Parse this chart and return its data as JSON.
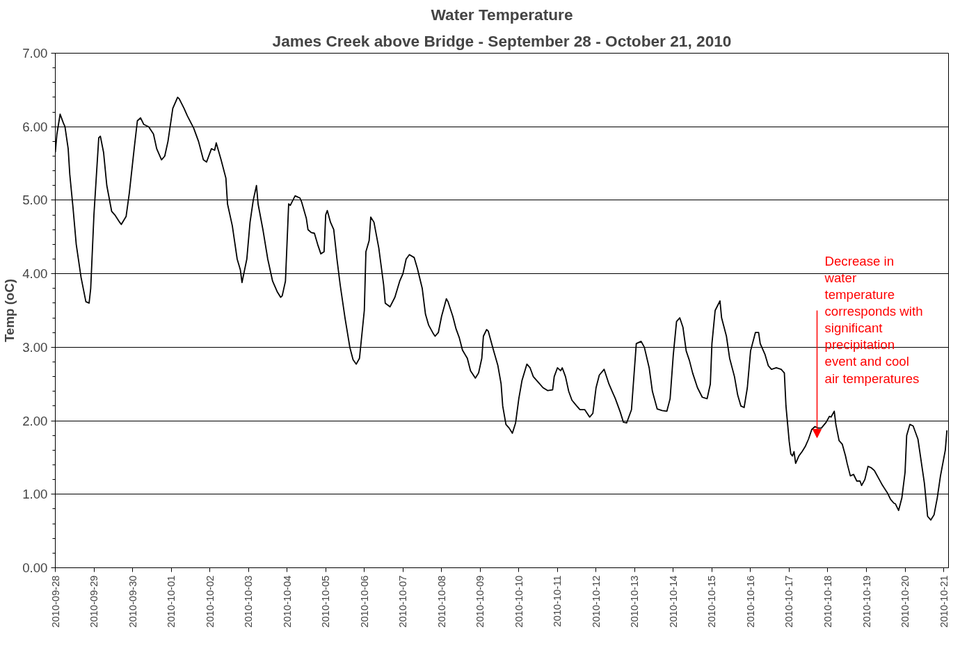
{
  "chart_data": {
    "type": "line",
    "title": "Water Temperature",
    "subtitle": "James Creek above Bridge - September 28 - October 21, 2010",
    "ylabel": "Temp (oC)",
    "x": [
      "2010-09-28T00:00",
      "2010-09-28T01:00",
      "2010-09-28T03:00",
      "2010-09-28T05:00",
      "2010-09-28T06:00",
      "2010-09-28T08:00",
      "2010-09-28T09:00",
      "2010-09-28T11:00",
      "2010-09-28T13:00",
      "2010-09-28T16:00",
      "2010-09-28T19:00",
      "2010-09-28T21:00",
      "2010-09-28T22:00",
      "2010-09-29T00:00",
      "2010-09-29T03:00",
      "2010-09-29T04:00",
      "2010-09-29T06:00",
      "2010-09-29T08:00",
      "2010-09-29T11:00",
      "2010-09-29T13:00",
      "2010-09-29T16:00",
      "2010-09-29T17:00",
      "2010-09-29T20:00",
      "2010-09-29T22:00",
      "2010-09-30T01:00",
      "2010-09-30T03:00",
      "2010-09-30T05:00",
      "2010-09-30T07:00",
      "2010-09-30T10:00",
      "2010-09-30T13:00",
      "2010-09-30T15:00",
      "2010-09-30T18:00",
      "2010-09-30T20:00",
      "2010-09-30T22:00",
      "2010-10-01T01:00",
      "2010-10-01T04:00",
      "2010-10-01T05:00",
      "2010-10-01T08:00",
      "2010-10-01T10:00",
      "2010-10-01T14:00",
      "2010-10-01T17:00",
      "2010-10-01T20:00",
      "2010-10-01T22:00",
      "2010-10-02T01:00",
      "2010-10-02T03:00",
      "2010-10-02T04:00",
      "2010-10-02T07:00",
      "2010-10-02T10:00",
      "2010-10-02T11:00",
      "2010-10-02T14:00",
      "2010-10-02T17:00",
      "2010-10-02T19:00",
      "2010-10-02T20:00",
      "2010-10-02T23:00",
      "2010-10-03T01:00",
      "2010-10-03T03:00",
      "2010-10-03T05:00",
      "2010-10-03T06:00",
      "2010-10-03T09:00",
      "2010-10-03T12:00",
      "2010-10-03T15:00",
      "2010-10-03T18:00",
      "2010-10-03T20:00",
      "2010-10-03T21:00",
      "2010-10-03T23:00",
      "2010-10-04T01:00",
      "2010-10-04T02:00",
      "2010-10-04T05:00",
      "2010-10-04T08:00",
      "2010-10-04T09:00",
      "2010-10-04T12:00",
      "2010-10-04T13:00",
      "2010-10-04T15:00",
      "2010-10-04T17:00",
      "2010-10-04T19:00",
      "2010-10-04T21:00",
      "2010-10-04T23:00",
      "2010-10-05T00:00",
      "2010-10-05T01:00",
      "2010-10-05T03:00",
      "2010-10-05T05:00",
      "2010-10-05T07:00",
      "2010-10-05T09:00",
      "2010-10-05T12:00",
      "2010-10-05T15:00",
      "2010-10-05T17:00",
      "2010-10-05T19:00",
      "2010-10-05T21:00",
      "2010-10-06T00:00",
      "2010-10-06T01:00",
      "2010-10-06T03:00",
      "2010-10-06T04:00",
      "2010-10-06T06:00",
      "2010-10-06T09:00",
      "2010-10-06T12:00",
      "2010-10-06T13:00",
      "2010-10-06T16:00",
      "2010-10-06T19:00",
      "2010-10-06T22:00",
      "2010-10-07T00:00",
      "2010-10-07T02:00",
      "2010-10-07T04:00",
      "2010-10-07T07:00",
      "2010-10-07T09:00",
      "2010-10-07T12:00",
      "2010-10-07T14:00",
      "2010-10-07T16:00",
      "2010-10-07T19:00",
      "2010-10-07T20:00",
      "2010-10-07T22:00",
      "2010-10-08T00:00",
      "2010-10-08T03:00",
      "2010-10-08T04:00",
      "2010-10-08T07:00",
      "2010-10-08T09:00",
      "2010-10-08T11:00",
      "2010-10-08T13:00",
      "2010-10-08T16:00",
      "2010-10-08T18:00",
      "2010-10-08T21:00",
      "2010-10-08T23:00",
      "2010-10-09T01:00",
      "2010-10-09T02:00",
      "2010-10-09T04:00",
      "2010-10-09T05:00",
      "2010-10-09T08:00",
      "2010-10-09T11:00",
      "2010-10-09T13:00",
      "2010-10-09T14:00",
      "2010-10-09T16:00",
      "2010-10-09T18:00",
      "2010-10-09T20:00",
      "2010-10-09T22:00",
      "2010-10-10T00:00",
      "2010-10-10T02:00",
      "2010-10-10T05:00",
      "2010-10-10T07:00",
      "2010-10-10T09:00",
      "2010-10-10T13:00",
      "2010-10-10T15:00",
      "2010-10-10T18:00",
      "2010-10-10T21:00",
      "2010-10-10T22:00",
      "2010-10-11T00:00",
      "2010-10-11T02:00",
      "2010-10-11T03:00",
      "2010-10-11T05:00",
      "2010-10-11T07:00",
      "2010-10-11T09:00",
      "2010-10-11T12:00",
      "2010-10-11T14:00",
      "2010-10-11T17:00",
      "2010-10-11T20:00",
      "2010-10-11T22:00",
      "2010-10-12T00:00",
      "2010-10-12T02:00",
      "2010-10-12T05:00",
      "2010-10-12T08:00",
      "2010-10-12T10:00",
      "2010-10-12T12:00",
      "2010-10-12T15:00",
      "2010-10-12T17:00",
      "2010-10-12T19:00",
      "2010-10-12T22:00",
      "2010-10-13T00:00",
      "2010-10-13T01:00",
      "2010-10-13T04:00",
      "2010-10-13T06:00",
      "2010-10-13T09:00",
      "2010-10-13T11:00",
      "2010-10-13T14:00",
      "2010-10-13T17:00",
      "2010-10-13T20:00",
      "2010-10-13T22:00",
      "2010-10-14T00:00",
      "2010-10-14T02:00",
      "2010-10-14T04:00",
      "2010-10-14T06:00",
      "2010-10-14T08:00",
      "2010-10-14T10:00",
      "2010-10-14T12:00",
      "2010-10-14T15:00",
      "2010-10-14T18:00",
      "2010-10-14T21:00",
      "2010-10-14T23:00",
      "2010-10-15T00:00",
      "2010-10-15T02:00",
      "2010-10-15T05:00",
      "2010-10-15T06:00",
      "2010-10-15T09:00",
      "2010-10-15T11:00",
      "2010-10-15T14:00",
      "2010-10-15T16:00",
      "2010-10-15T18:00",
      "2010-10-15T20:00",
      "2010-10-15T22:00",
      "2010-10-16T00:00",
      "2010-10-16T03:00",
      "2010-10-16T05:00",
      "2010-10-16T06:00",
      "2010-10-16T09:00",
      "2010-10-16T11:00",
      "2010-10-16T13:00",
      "2010-10-16T16:00",
      "2010-10-16T19:00",
      "2010-10-16T21:00",
      "2010-10-16T22:00",
      "2010-10-17T00:00",
      "2010-10-17T01:00",
      "2010-10-17T02:00",
      "2010-10-17T03:00",
      "2010-10-17T04:00",
      "2010-10-17T06:00",
      "2010-10-17T08:00",
      "2010-10-17T10:00",
      "2010-10-17T12:00",
      "2010-10-17T14:00",
      "2010-10-17T16:00",
      "2010-10-17T18:00",
      "2010-10-17T20:00",
      "2010-10-17T23:00",
      "2010-10-18T01:00",
      "2010-10-18T02:00",
      "2010-10-18T04:00",
      "2010-10-18T05:00",
      "2010-10-18T07:00",
      "2010-10-18T09:00",
      "2010-10-18T11:00",
      "2010-10-18T12:00",
      "2010-10-18T14:00",
      "2010-10-18T16:00",
      "2010-10-18T18:00",
      "2010-10-18T20:00",
      "2010-10-18T21:00",
      "2010-10-18T23:00",
      "2010-10-19T01:00",
      "2010-10-19T03:00",
      "2010-10-19T05:00",
      "2010-10-19T08:00",
      "2010-10-19T10:00",
      "2010-10-19T13:00",
      "2010-10-19T15:00",
      "2010-10-19T17:00",
      "2010-10-19T18:00",
      "2010-10-19T20:00",
      "2010-10-19T22:00",
      "2010-10-20T00:00",
      "2010-10-20T01:00",
      "2010-10-20T03:00",
      "2010-10-20T05:00",
      "2010-10-20T08:00",
      "2010-10-20T10:00",
      "2010-10-20T12:00",
      "2010-10-20T14:00",
      "2010-10-20T16:00",
      "2010-10-20T18:00",
      "2010-10-20T20:00",
      "2010-10-20T22:00",
      "2010-10-21T01:00",
      "2010-10-21T02:00"
    ],
    "series": [
      {
        "color": "#000000",
        "values": [
          5.65,
          5.9,
          6.17,
          6.05,
          6.0,
          5.7,
          5.35,
          4.9,
          4.4,
          3.95,
          3.62,
          3.6,
          3.8,
          4.8,
          5.85,
          5.87,
          5.65,
          5.2,
          4.85,
          4.8,
          4.7,
          4.67,
          4.78,
          5.1,
          5.7,
          6.08,
          6.12,
          6.03,
          6.0,
          5.9,
          5.7,
          5.55,
          5.6,
          5.8,
          6.25,
          6.4,
          6.38,
          6.25,
          6.15,
          5.98,
          5.8,
          5.55,
          5.52,
          5.7,
          5.68,
          5.78,
          5.55,
          5.3,
          4.95,
          4.65,
          4.2,
          4.05,
          3.88,
          4.2,
          4.7,
          5.0,
          5.2,
          4.95,
          4.6,
          4.2,
          3.9,
          3.75,
          3.68,
          3.7,
          3.9,
          4.95,
          4.93,
          5.06,
          5.03,
          4.98,
          4.75,
          4.6,
          4.56,
          4.55,
          4.4,
          4.27,
          4.3,
          4.8,
          4.86,
          4.7,
          4.6,
          4.2,
          3.85,
          3.4,
          3.0,
          2.83,
          2.77,
          2.85,
          3.5,
          4.3,
          4.45,
          4.77,
          4.7,
          4.35,
          3.85,
          3.6,
          3.55,
          3.68,
          3.9,
          4.0,
          4.2,
          4.26,
          4.22,
          4.07,
          3.8,
          3.45,
          3.3,
          3.18,
          3.15,
          3.2,
          3.42,
          3.66,
          3.62,
          3.42,
          3.25,
          3.13,
          2.96,
          2.85,
          2.68,
          2.58,
          2.65,
          2.85,
          3.15,
          3.24,
          3.22,
          2.98,
          2.75,
          2.5,
          2.2,
          1.95,
          1.9,
          1.83,
          1.97,
          2.3,
          2.55,
          2.77,
          2.72,
          2.6,
          2.5,
          2.45,
          2.41,
          2.42,
          2.6,
          2.72,
          2.68,
          2.72,
          2.6,
          2.4,
          2.28,
          2.2,
          2.15,
          2.15,
          2.05,
          2.1,
          2.45,
          2.62,
          2.7,
          2.5,
          2.4,
          2.3,
          2.12,
          1.98,
          1.97,
          2.15,
          2.75,
          3.05,
          3.08,
          3.0,
          2.72,
          2.4,
          2.16,
          2.14,
          2.13,
          2.3,
          2.9,
          3.35,
          3.4,
          3.27,
          2.95,
          2.82,
          2.65,
          2.45,
          2.32,
          2.3,
          2.5,
          3.05,
          3.5,
          3.63,
          3.4,
          3.15,
          2.85,
          2.6,
          2.35,
          2.2,
          2.18,
          2.45,
          2.95,
          3.2,
          3.2,
          3.05,
          2.9,
          2.75,
          2.7,
          2.72,
          2.7,
          2.65,
          2.2,
          1.72,
          1.55,
          1.52,
          1.58,
          1.42,
          1.52,
          1.58,
          1.65,
          1.75,
          1.88,
          1.92,
          1.9,
          1.9,
          1.98,
          2.06,
          2.05,
          2.13,
          1.95,
          1.73,
          1.68,
          1.52,
          1.42,
          1.25,
          1.27,
          1.18,
          1.18,
          1.12,
          1.2,
          1.38,
          1.36,
          1.32,
          1.2,
          1.12,
          1.02,
          0.93,
          0.88,
          0.87,
          0.78,
          0.95,
          1.3,
          1.8,
          1.95,
          1.93,
          1.75,
          1.45,
          1.15,
          0.7,
          0.65,
          0.72,
          0.95,
          1.25,
          1.6,
          1.87
        ]
      }
    ],
    "xlim": [
      "2010-09-28T00:00",
      "2010-10-21T03:00"
    ],
    "xticks": [
      "2010-09-28",
      "2010-09-29",
      "2010-09-30",
      "2010-10-01",
      "2010-10-02",
      "2010-10-03",
      "2010-10-04",
      "2010-10-05",
      "2010-10-06",
      "2010-10-07",
      "2010-10-08",
      "2010-10-09",
      "2010-10-10",
      "2010-10-11",
      "2010-10-12",
      "2010-10-13",
      "2010-10-14",
      "2010-10-15",
      "2010-10-16",
      "2010-10-17",
      "2010-10-18",
      "2010-10-19",
      "2010-10-20",
      "2010-10-21"
    ],
    "ylim": [
      0,
      7
    ],
    "yticks": [
      {
        "value": 0,
        "label": "0.00"
      },
      {
        "value": 0.2,
        "label": null
      },
      {
        "value": 0.4,
        "label": null
      },
      {
        "value": 0.6,
        "label": null
      },
      {
        "value": 0.8,
        "label": null
      },
      {
        "value": 1,
        "label": "1.00"
      },
      {
        "value": 1.2,
        "label": null
      },
      {
        "value": 1.4,
        "label": null
      },
      {
        "value": 1.6,
        "label": null
      },
      {
        "value": 1.8,
        "label": null
      },
      {
        "value": 2,
        "label": "2.00"
      },
      {
        "value": 2.2,
        "label": null
      },
      {
        "value": 2.4,
        "label": null
      },
      {
        "value": 2.6,
        "label": null
      },
      {
        "value": 2.8,
        "label": null
      },
      {
        "value": 3,
        "label": "3.00"
      },
      {
        "value": 3.2,
        "label": null
      },
      {
        "value": 3.4,
        "label": null
      },
      {
        "value": 3.6,
        "label": null
      },
      {
        "value": 3.8,
        "label": null
      },
      {
        "value": 4,
        "label": "4.00"
      },
      {
        "value": 4.2,
        "label": null
      },
      {
        "value": 4.4,
        "label": null
      },
      {
        "value": 4.6,
        "label": null
      },
      {
        "value": 4.8,
        "label": null
      },
      {
        "value": 5,
        "label": "5.00"
      },
      {
        "value": 5.2,
        "label": null
      },
      {
        "value": 5.4,
        "label": null
      },
      {
        "value": 5.6,
        "label": null
      },
      {
        "value": 5.8,
        "label": null
      },
      {
        "value": 6,
        "label": "6.00"
      },
      {
        "value": 6.2,
        "label": null
      },
      {
        "value": 6.4,
        "label": null
      },
      {
        "value": 6.6,
        "label": null
      },
      {
        "value": 6.8,
        "label": null
      },
      {
        "value": 7,
        "label": "7.00"
      }
    ],
    "grid": "y",
    "marker": "none",
    "line_style": "solid",
    "annotations": [
      "Decrease in water temperature corresponds with significant precipitation event and cool air temperatures"
    ]
  }
}
